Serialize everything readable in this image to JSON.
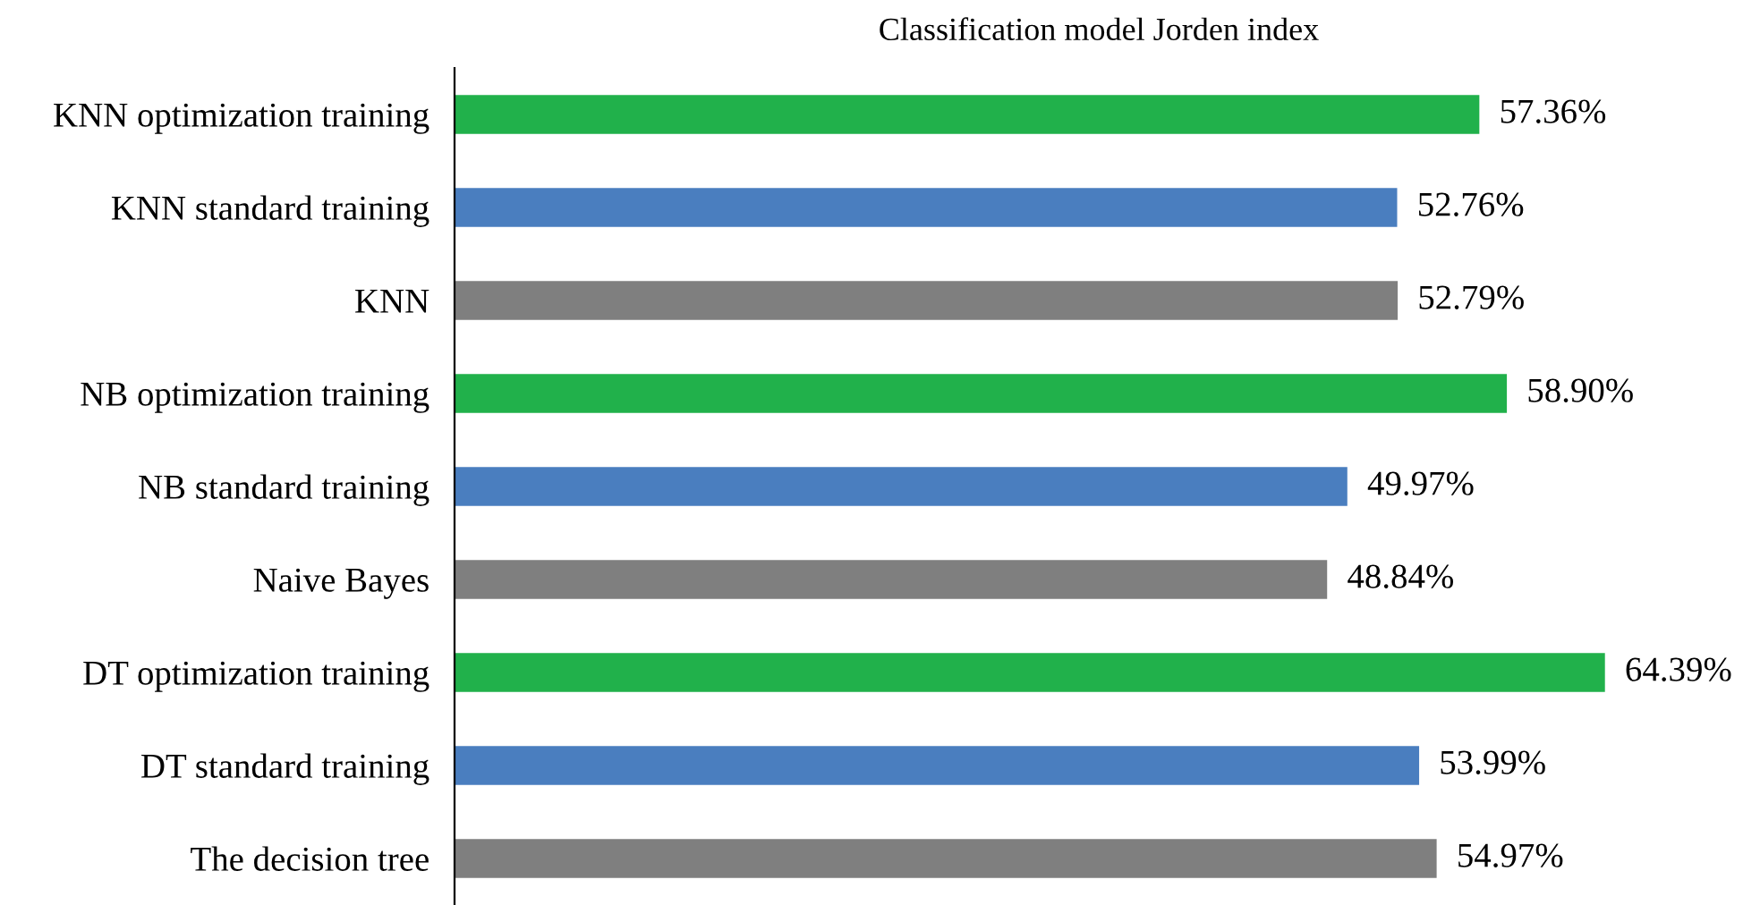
{
  "chart_data": {
    "type": "bar",
    "orientation": "horizontal",
    "title": "Classification model Jorden index",
    "categories": [
      "KNN optimization training",
      "KNN standard training",
      "KNN",
      "NB optimization training",
      "NB standard training",
      "Naive Bayes",
      "DT optimization training",
      "DT standard training",
      "The decision tree"
    ],
    "values": [
      57.36,
      52.76,
      52.79,
      58.9,
      49.97,
      48.84,
      64.39,
      53.99,
      54.97
    ],
    "colors": [
      "#21b14b",
      "#4a7ebf",
      "#7f7f7f",
      "#21b14b",
      "#4a7ebf",
      "#7f7f7f",
      "#21b14b",
      "#4a7ebf",
      "#7f7f7f"
    ],
    "value_labels": [
      "57.36%",
      "52.76%",
      "52.79%",
      "58.90%",
      "49.97%",
      "48.84%",
      "64.39%",
      "53.99%",
      "54.97%"
    ],
    "grid": false,
    "legend": false
  }
}
